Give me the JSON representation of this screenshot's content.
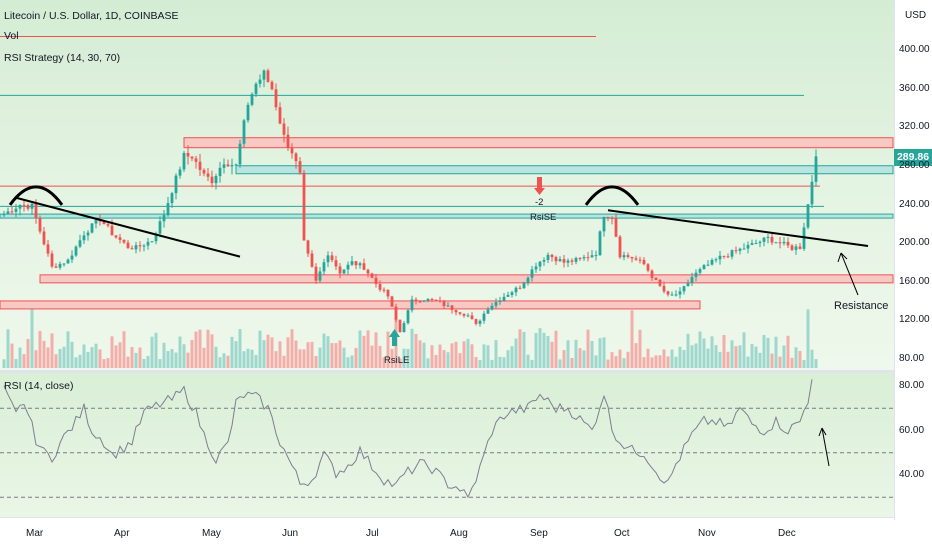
{
  "header": {
    "symbol_line": "Litecoin / U.S. Dollar, 1D, COINBASE",
    "vol_label": "Vol",
    "strategy_label": "RSI Strategy (14, 30, 70)",
    "currency": "USD"
  },
  "last_price": "289.86",
  "rsi_header": "RSI (14, close)",
  "annotations": {
    "resistance": "Resistance",
    "sell_count": "-2",
    "sell_signal": "RsiSE",
    "buy_signal": "RsiLE"
  },
  "colors": {
    "up": "#26a69a",
    "down": "#ef5350",
    "zone_fill_red": "#f8c8c5",
    "zone_fill_teal": "#b9e4df",
    "rsi_line": "#7e7e8f",
    "trendline": "#000000"
  },
  "chart_data": [
    {
      "type": "candlestick",
      "title": "Litecoin / U.S. Dollar, 1D, COINBASE",
      "y_axis_ticks": [
        80,
        120,
        160,
        200,
        240,
        280,
        320,
        360,
        400
      ],
      "y_axis_tick_labels": [
        "80.00",
        "120.00",
        "160.00",
        "200.00",
        "240.00",
        "280.00",
        "320.00",
        "360.00",
        "400.00"
      ],
      "ylim": [
        75,
        432
      ],
      "x_axis_ticks": [
        "Mar",
        "Apr",
        "May",
        "Jun",
        "Jul",
        "Aug",
        "Sep",
        "Oct",
        "Nov",
        "Dec"
      ],
      "last_price": 289.86,
      "anchors": [
        [
          0,
          230
        ],
        [
          4,
          240
        ],
        [
          7,
          238
        ],
        [
          10,
          200
        ],
        [
          12,
          175
        ],
        [
          16,
          182
        ],
        [
          20,
          210
        ],
        [
          24,
          225
        ],
        [
          27,
          210
        ],
        [
          31,
          196
        ],
        [
          33,
          195
        ],
        [
          37,
          203
        ],
        [
          40,
          230
        ],
        [
          42,
          255
        ],
        [
          45,
          290
        ],
        [
          47,
          290
        ],
        [
          50,
          270
        ],
        [
          52,
          265
        ],
        [
          55,
          285
        ],
        [
          58,
          280
        ],
        [
          61,
          345
        ],
        [
          63,
          365
        ],
        [
          65,
          375
        ],
        [
          67,
          360
        ],
        [
          70,
          310
        ],
        [
          72,
          295
        ],
        [
          74,
          270
        ],
        [
          75,
          200
        ],
        [
          78,
          160
        ],
        [
          81,
          190
        ],
        [
          84,
          170
        ],
        [
          87,
          180
        ],
        [
          90,
          175
        ],
        [
          93,
          158
        ],
        [
          96,
          145
        ],
        [
          99,
          108
        ],
        [
          102,
          140
        ],
        [
          105,
          142
        ],
        [
          108,
          140
        ],
        [
          112,
          132
        ],
        [
          116,
          125
        ],
        [
          118,
          115
        ],
        [
          121,
          133
        ],
        [
          125,
          145
        ],
        [
          129,
          155
        ],
        [
          133,
          178
        ],
        [
          136,
          188
        ],
        [
          140,
          180
        ],
        [
          144,
          183
        ],
        [
          148,
          190
        ],
        [
          150,
          230
        ],
        [
          152,
          228
        ],
        [
          154,
          188
        ],
        [
          157,
          185
        ],
        [
          160,
          178
        ],
        [
          163,
          160
        ],
        [
          166,
          145
        ],
        [
          169,
          148
        ],
        [
          172,
          165
        ],
        [
          175,
          175
        ],
        [
          179,
          185
        ],
        [
          182,
          190
        ],
        [
          185,
          195
        ],
        [
          188,
          200
        ],
        [
          191,
          205
        ],
        [
          194,
          200
        ],
        [
          197,
          195
        ],
        [
          199,
          196
        ],
        [
          201,
          240
        ],
        [
          202,
          265
        ],
        [
          203,
          289.86
        ]
      ],
      "horizontal_levels": [
        {
          "y": 414,
          "style": "red-line",
          "x_end_day": 148
        },
        {
          "y": 353,
          "style": "teal-line",
          "x_end_day": 200
        },
        {
          "y": 304,
          "style": "red-zone",
          "height": 10,
          "x_start_day": 45
        },
        {
          "y": 276,
          "style": "teal-zone",
          "height": 8,
          "x_start_day": 58
        },
        {
          "y": 259,
          "style": "red-line",
          "x_end_day": 204
        },
        {
          "y": 238,
          "style": "teal-line",
          "x_end_day": 205
        },
        {
          "y": 228,
          "style": "teal-zone",
          "height": 4
        },
        {
          "y": 163,
          "style": "red-zone",
          "height": 8,
          "x_start_day": 9
        },
        {
          "y": 136,
          "style": "red-zone",
          "height": 8,
          "x_end_day": 174
        }
      ],
      "trendlines": [
        {
          "from": [
            3,
            247
          ],
          "to": [
            59,
            186
          ]
        },
        {
          "from": [
            151,
            234
          ],
          "to": [
            216,
            197
          ]
        }
      ],
      "arcs": [
        {
          "center_day": 8,
          "y": 252
        },
        {
          "center_day": 152,
          "y": 252
        }
      ],
      "volume": {
        "spike_days": [
          7,
          98,
          157,
          201
        ]
      }
    },
    {
      "type": "line",
      "title": "RSI (14, close)",
      "series": [
        {
          "values": [
            [
              0,
              78
            ],
            [
              3,
              67
            ],
            [
              5,
              73
            ],
            [
              8,
              56
            ],
            [
              10,
              50
            ],
            [
              12,
              48
            ],
            [
              15,
              57
            ],
            [
              18,
              64
            ],
            [
              20,
              70
            ],
            [
              22,
              60
            ],
            [
              25,
              55
            ],
            [
              27,
              49
            ],
            [
              29,
              51
            ],
            [
              32,
              55
            ],
            [
              35,
              68
            ],
            [
              38,
              71
            ],
            [
              42,
              74
            ],
            [
              45,
              78
            ],
            [
              48,
              68
            ],
            [
              50,
              58
            ],
            [
              53,
              47
            ],
            [
              56,
              54
            ],
            [
              58,
              72
            ],
            [
              60,
              76
            ],
            [
              63,
              75
            ],
            [
              66,
              70
            ],
            [
              69,
              55
            ],
            [
              72,
              44
            ],
            [
              74,
              36
            ],
            [
              77,
              38
            ],
            [
              80,
              49
            ],
            [
              83,
              41
            ],
            [
              86,
              44
            ],
            [
              89,
              51
            ],
            [
              92,
              44
            ],
            [
              95,
              38
            ],
            [
              98,
              35
            ],
            [
              100,
              40
            ],
            [
              104,
              45
            ],
            [
              107,
              43
            ],
            [
              111,
              36
            ],
            [
              114,
              34
            ],
            [
              116,
              29
            ],
            [
              119,
              43
            ],
            [
              122,
              60
            ],
            [
              125,
              67
            ],
            [
              128,
              69
            ],
            [
              131,
              70
            ],
            [
              134,
              76
            ],
            [
              136,
              73
            ],
            [
              138,
              70
            ],
            [
              141,
              70
            ],
            [
              144,
              65
            ],
            [
              147,
              60
            ],
            [
              150,
              77
            ],
            [
              152,
              61
            ],
            [
              154,
              55
            ],
            [
              157,
              51
            ],
            [
              160,
              50
            ],
            [
              163,
              42
            ],
            [
              166,
              36
            ],
            [
              168,
              45
            ],
            [
              172,
              58
            ],
            [
              175,
              64
            ],
            [
              178,
              64
            ],
            [
              181,
              61
            ],
            [
              184,
              70
            ],
            [
              187,
              63
            ],
            [
              190,
              60
            ],
            [
              193,
              64
            ],
            [
              196,
              60
            ],
            [
              199,
              64
            ],
            [
              201,
              74
            ],
            [
              202,
              83
            ]
          ]
        }
      ],
      "levels": [
        70,
        50,
        30
      ],
      "y_axis_ticks": [
        40,
        60,
        80
      ],
      "y_axis_tick_labels": [
        "40.00",
        "60.00",
        "80.00"
      ],
      "ylim": [
        20,
        86
      ]
    }
  ],
  "time_axis": [
    {
      "label": "Mar",
      "day": 8
    },
    {
      "label": "Apr",
      "day": 30
    },
    {
      "label": "May",
      "day": 52
    },
    {
      "label": "Jun",
      "day": 72
    },
    {
      "label": "Jul",
      "day": 93
    },
    {
      "label": "Aug",
      "day": 114
    },
    {
      "label": "Sep",
      "day": 134
    },
    {
      "label": "Oct",
      "day": 155
    },
    {
      "label": "Nov",
      "day": 176
    },
    {
      "label": "Dec",
      "day": 196
    }
  ]
}
